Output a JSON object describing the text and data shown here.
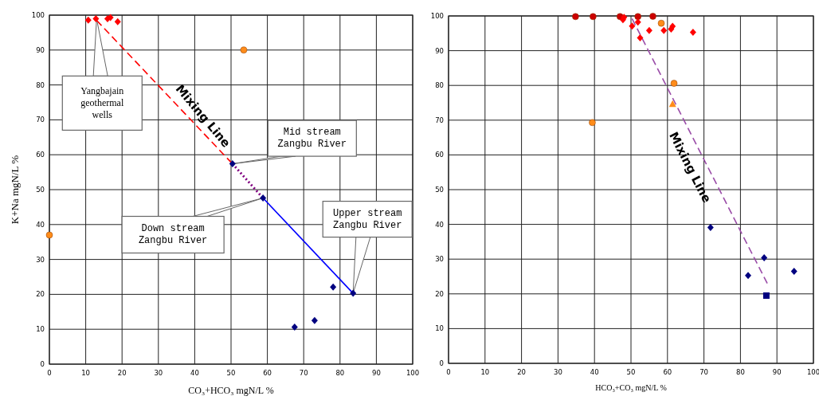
{
  "chart_data": [
    {
      "type": "scatter",
      "xlabel": "CO₃+HCO₃ mgN/L %",
      "ylabel": "K+Na mgN/L %",
      "xlim": [
        0,
        100
      ],
      "ylim": [
        0,
        100
      ],
      "xticks": [
        0,
        10,
        20,
        30,
        40,
        50,
        60,
        70,
        80,
        90,
        100
      ],
      "yticks": [
        0,
        10,
        20,
        30,
        40,
        50,
        60,
        70,
        80,
        90,
        100
      ],
      "grid": true,
      "series": [
        {
          "type": "line",
          "color": "#ff0000",
          "line_style": "dashed",
          "marker": "none",
          "x": [
            13,
            50.4
          ],
          "values": [
            98.5,
            57.4
          ]
        },
        {
          "type": "line",
          "color": "#800080",
          "line_style": "dotted",
          "marker": "none",
          "x": [
            50.4,
            58.8
          ],
          "values": [
            57.4,
            47.6
          ]
        },
        {
          "type": "line",
          "color": "#0000ff",
          "line_style": "solid",
          "marker": "none",
          "x": [
            58.8,
            83.6
          ],
          "values": [
            47.6,
            20.3
          ]
        },
        {
          "color": "#ff0000",
          "marker": "diamond",
          "x": [
            10.7,
            12.8,
            16,
            16.8,
            18.8
          ],
          "values": [
            98.6,
            99,
            99,
            99.3,
            98.1
          ]
        },
        {
          "color": "#ff8c1a",
          "marker": "circle",
          "x": [
            53.5,
            0
          ],
          "values": [
            90,
            37
          ]
        },
        {
          "color": "#000080",
          "marker": "diamond",
          "x": [
            50.4,
            58.8,
            83.6,
            78.1,
            73,
            67.5
          ],
          "values": [
            57.4,
            47.6,
            20.3,
            22.1,
            12.5,
            10.6
          ]
        }
      ],
      "annotations": [
        {
          "text": "Mixing Line",
          "x": 37,
          "y": 72
        },
        {
          "text": "Yangbajain\ngeothermal\nwells",
          "x": 13,
          "y": 99
        },
        {
          "text": "Mid stream\nZangbu River",
          "x": 50.4,
          "y": 57.4
        },
        {
          "text": "Down stream\nZangbu River",
          "x": 58.8,
          "y": 47.6
        },
        {
          "text": "Upper stream\nZangbu River",
          "x": 83.6,
          "y": 20.3
        }
      ]
    },
    {
      "type": "scatter",
      "xlabel": "HCO₃+CO₃ mgN/L %",
      "xlim": [
        0,
        100
      ],
      "ylim": [
        0,
        100
      ],
      "xticks": [
        0,
        10,
        20,
        30,
        40,
        50,
        60,
        70,
        80,
        90,
        100
      ],
      "yticks": [
        0,
        10,
        20,
        30,
        40,
        50,
        60,
        70,
        80,
        90,
        100
      ],
      "grid": true,
      "series": [
        {
          "type": "line",
          "color": "#9a4ca8",
          "line_style": "dashed",
          "marker": "none",
          "x": [
            50.3,
            87.4
          ],
          "values": [
            99.2,
            22.9
          ]
        },
        {
          "color": "#cc0000",
          "marker": "circle",
          "x": [
            34.8,
            39.6,
            47,
            51.9,
            56
          ],
          "values": [
            99.8,
            99.8,
            99.8,
            99.8,
            99.9
          ]
        },
        {
          "color": "#ff0000",
          "marker": "diamond",
          "x": [
            48.1,
            47.8,
            50.3,
            51.9,
            52.5,
            55,
            59,
            61,
            61.4,
            67
          ],
          "values": [
            99.6,
            98.9,
            97.1,
            98.2,
            93.7,
            95.8,
            95.8,
            96.2,
            97,
            95.3
          ]
        },
        {
          "color": "#ff8c1a",
          "marker": "circle",
          "x": [
            58.3,
            61.8,
            39.4
          ],
          "values": [
            97.9,
            80.6,
            69.3
          ]
        },
        {
          "color": "#ff8c1a",
          "marker": "triangle",
          "x": [
            61.4
          ],
          "values": [
            74.6
          ]
        },
        {
          "color": "#000080",
          "marker": "diamond",
          "x": [
            71.8,
            86.5,
            82.1,
            94.7
          ],
          "values": [
            39.1,
            30.4,
            25.3,
            26.5
          ]
        },
        {
          "color": "#000080",
          "marker": "square",
          "x": [
            87.1
          ],
          "values": [
            19.5
          ]
        }
      ],
      "annotations": [
        {
          "text": "Mixing Line",
          "x": 71,
          "y": 56.4
        }
      ]
    }
  ]
}
